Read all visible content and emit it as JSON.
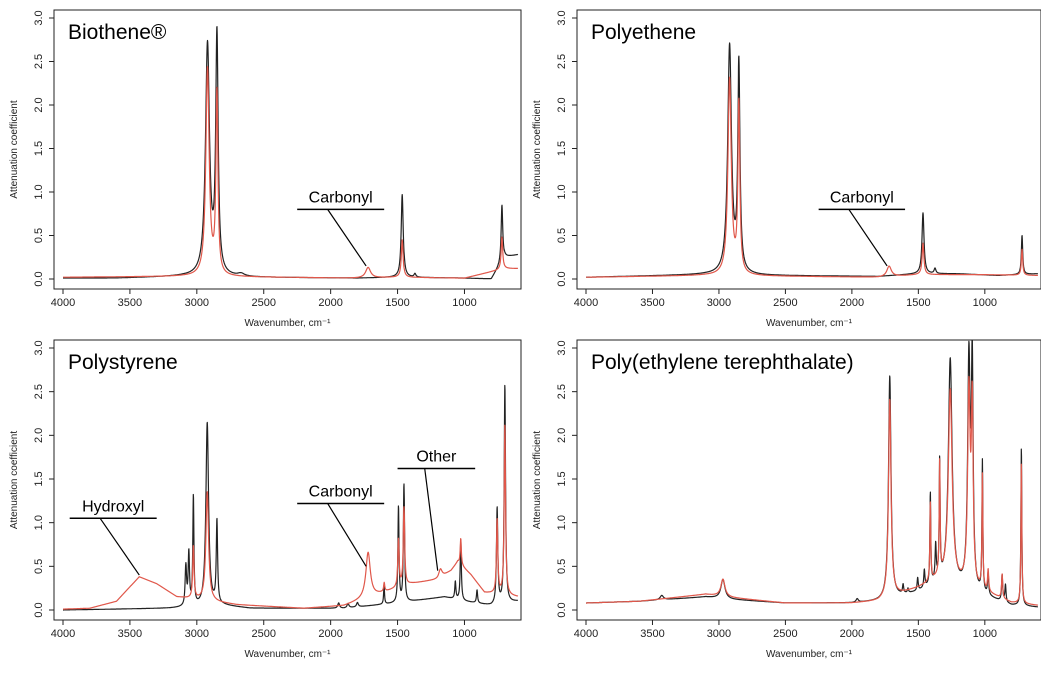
{
  "chart_data": [
    {
      "type": "line",
      "title": "Biothene®",
      "xlabel": "Wavenumber, cm⁻¹",
      "ylabel": "Attenuation coefficient",
      "xlim": [
        4000,
        600
      ],
      "ylim": [
        0,
        3.0
      ],
      "xticks": [
        {
          "value": 4000,
          "label": "4000"
        },
        {
          "value": 3500,
          "label": "3500"
        },
        {
          "value": 3000,
          "label": "3000"
        },
        {
          "value": 2500,
          "label": "2500"
        },
        {
          "value": 2000,
          "label": "2000"
        },
        {
          "value": 1500,
          "label": "1500"
        },
        {
          "value": 1000,
          "label": "1000"
        }
      ],
      "yticks": [
        {
          "value": 0,
          "label": "0.0"
        },
        {
          "value": 0.5,
          "label": "0.5"
        },
        {
          "value": 1.0,
          "label": "1.0"
        },
        {
          "value": 1.5,
          "label": "1.5"
        },
        {
          "value": 2.0,
          "label": "2.0"
        },
        {
          "value": 2.5,
          "label": "2.5"
        },
        {
          "value": 3.0,
          "label": "3.0"
        }
      ],
      "series": [
        {
          "color": "#222222",
          "baseline": [
            [
              4000,
              0.01
            ],
            [
              3600,
              0.01
            ],
            [
              3100,
              0.03
            ],
            [
              2700,
              0.02
            ],
            [
              1800,
              0.01
            ],
            [
              1500,
              0.02
            ],
            [
              1000,
              0.01
            ],
            [
              800,
              0.0
            ],
            [
              700,
              0.25
            ],
            [
              600,
              0.28
            ]
          ],
          "peaks": [
            [
              2920,
              2.65,
              18
            ],
            [
              2850,
              2.72,
              11
            ],
            [
              2670,
              0.03,
              30
            ],
            [
              1465,
              0.95,
              9
            ],
            [
              1370,
              0.04,
              8
            ],
            [
              720,
              0.65,
              7
            ]
          ]
        },
        {
          "color": "#e0574a",
          "baseline": [
            [
              4000,
              0.02
            ],
            [
              3100,
              0.03
            ],
            [
              1800,
              0.01
            ],
            [
              1500,
              0.02
            ],
            [
              1000,
              0.01
            ],
            [
              700,
              0.12
            ],
            [
              600,
              0.12
            ]
          ],
          "peaks": [
            [
              2920,
              2.38,
              15
            ],
            [
              2850,
              2.08,
              9
            ],
            [
              1720,
              0.12,
              22
            ],
            [
              1465,
              0.43,
              8
            ],
            [
              720,
              0.37,
              7
            ]
          ]
        }
      ],
      "annotations": [
        {
          "label": "Carbonyl",
          "bar": [
            2250,
            1600,
            0.8
          ],
          "tip": [
            1735,
            0.15
          ]
        }
      ]
    },
    {
      "type": "line",
      "title": "Polyethene",
      "xlabel": "Wavenumber, cm⁻¹",
      "ylabel": "Attenuation coefficient",
      "xlim": [
        4000,
        600
      ],
      "ylim": [
        0,
        3.0
      ],
      "xticks": [
        {
          "value": 4000,
          "label": "4000"
        },
        {
          "value": 3500,
          "label": "3500"
        },
        {
          "value": 3000,
          "label": "3000"
        },
        {
          "value": 2500,
          "label": "2500"
        },
        {
          "value": 2000,
          "label": "2000"
        },
        {
          "value": 1500,
          "label": "1500"
        },
        {
          "value": 1000,
          "label": "1000"
        }
      ],
      "yticks": [
        {
          "value": 0,
          "label": "0.0"
        },
        {
          "value": 0.5,
          "label": "0.5"
        },
        {
          "value": 1.0,
          "label": "1.0"
        },
        {
          "value": 1.5,
          "label": "1.5"
        },
        {
          "value": 2.0,
          "label": "2.0"
        },
        {
          "value": 2.5,
          "label": "2.5"
        },
        {
          "value": 3.0,
          "label": "3.0"
        }
      ],
      "series": [
        {
          "color": "#222222",
          "baseline": [
            [
              4000,
              0.02
            ],
            [
              3100,
              0.05
            ],
            [
              2700,
              0.04
            ],
            [
              1800,
              0.03
            ],
            [
              1500,
              0.06
            ],
            [
              1200,
              0.06
            ],
            [
              900,
              0.04
            ],
            [
              600,
              0.06
            ]
          ],
          "peaks": [
            [
              2920,
              2.62,
              17
            ],
            [
              2850,
              2.38,
              10
            ],
            [
              1465,
              0.7,
              9
            ],
            [
              1375,
              0.06,
              8
            ],
            [
              720,
              0.45,
              6
            ]
          ]
        },
        {
          "color": "#e0574a",
          "baseline": [
            [
              4000,
              0.02
            ],
            [
              3100,
              0.04
            ],
            [
              1800,
              0.02
            ],
            [
              1500,
              0.05
            ],
            [
              1000,
              0.05
            ],
            [
              600,
              0.04
            ]
          ],
          "peaks": [
            [
              2920,
              2.25,
              15
            ],
            [
              2850,
              1.95,
              9
            ],
            [
              1720,
              0.12,
              20
            ],
            [
              1465,
              0.36,
              8
            ],
            [
              720,
              0.3,
              6
            ]
          ]
        }
      ],
      "annotations": [
        {
          "label": "Carbonyl",
          "bar": [
            2250,
            1600,
            0.8
          ],
          "tip": [
            1735,
            0.15
          ]
        }
      ]
    },
    {
      "type": "line",
      "title": "Polystyrene",
      "xlabel": "Wavenumber, cm⁻¹",
      "ylabel": "Attenuation coefficient",
      "xlim": [
        4000,
        600
      ],
      "ylim": [
        0,
        3.0
      ],
      "xticks": [
        {
          "value": 4000,
          "label": "4000"
        },
        {
          "value": 3500,
          "label": "3500"
        },
        {
          "value": 3000,
          "label": "3000"
        },
        {
          "value": 2500,
          "label": "2500"
        },
        {
          "value": 2000,
          "label": "2000"
        },
        {
          "value": 1500,
          "label": "1500"
        },
        {
          "value": 1000,
          "label": "1000"
        }
      ],
      "yticks": [
        {
          "value": 0,
          "label": "0.0"
        },
        {
          "value": 0.5,
          "label": "0.5"
        },
        {
          "value": 1.0,
          "label": "1.0"
        },
        {
          "value": 1.5,
          "label": "1.5"
        },
        {
          "value": 2.0,
          "label": "2.0"
        },
        {
          "value": 2.5,
          "label": "2.5"
        },
        {
          "value": 3.0,
          "label": "3.0"
        }
      ],
      "series": [
        {
          "color": "#222222",
          "baseline": [
            [
              4000,
              0.0
            ],
            [
              3200,
              0.02
            ],
            [
              2800,
              0.05
            ],
            [
              2600,
              0.02
            ],
            [
              1900,
              0.02
            ],
            [
              1500,
              0.08
            ],
            [
              1300,
              0.12
            ],
            [
              1150,
              0.15
            ],
            [
              1000,
              0.1
            ],
            [
              800,
              0.05
            ],
            [
              600,
              0.1
            ]
          ],
          "peaks": [
            [
              3082,
              0.45,
              6
            ],
            [
              3060,
              0.6,
              6
            ],
            [
              3026,
              1.25,
              5
            ],
            [
              2922,
              2.1,
              12
            ],
            [
              2850,
              0.95,
              6
            ],
            [
              1940,
              0.06,
              8
            ],
            [
              1870,
              0.05,
              8
            ],
            [
              1800,
              0.05,
              8
            ],
            [
              1601,
              0.22,
              4
            ],
            [
              1493,
              1.1,
              5
            ],
            [
              1452,
              1.35,
              5
            ],
            [
              1068,
              0.2,
              5
            ],
            [
              1028,
              0.7,
              5
            ],
            [
              906,
              0.15,
              5
            ],
            [
              756,
              1.1,
              6
            ],
            [
              698,
              2.5,
              6
            ]
          ]
        },
        {
          "color": "#e0574a",
          "baseline": [
            [
              4000,
              0.01
            ],
            [
              3800,
              0.02
            ],
            [
              3600,
              0.1
            ],
            [
              3430,
              0.38
            ],
            [
              3300,
              0.3
            ],
            [
              3150,
              0.15
            ],
            [
              2700,
              0.06
            ],
            [
              2200,
              0.02
            ],
            [
              1900,
              0.05
            ],
            [
              1600,
              0.2
            ],
            [
              1400,
              0.3
            ],
            [
              1200,
              0.35
            ],
            [
              1100,
              0.45
            ],
            [
              1050,
              0.55
            ],
            [
              950,
              0.4
            ],
            [
              850,
              0.2
            ],
            [
              600,
              0.15
            ]
          ],
          "peaks": [
            [
              3026,
              0.6,
              6
            ],
            [
              2922,
              1.25,
              12
            ],
            [
              1720,
              0.52,
              20
            ],
            [
              1600,
              0.1,
              5
            ],
            [
              1493,
              0.55,
              6
            ],
            [
              1452,
              0.9,
              6
            ],
            [
              1180,
              0.1,
              15
            ],
            [
              1028,
              0.3,
              5
            ],
            [
              756,
              0.85,
              6
            ],
            [
              698,
              1.95,
              6
            ]
          ]
        }
      ],
      "annotations": [
        {
          "label": "Hydroxyl",
          "bar": [
            3950,
            3300,
            1.05
          ],
          "tip": [
            3430,
            0.4
          ]
        },
        {
          "label": "Carbonyl",
          "bar": [
            2250,
            1600,
            1.22
          ],
          "tip": [
            1735,
            0.5
          ]
        },
        {
          "label": "Other",
          "bar": [
            1500,
            920,
            1.62
          ],
          "tip": [
            1200,
            0.45
          ]
        }
      ]
    },
    {
      "type": "line",
      "title": "Poly(ethylene terephthalate)",
      "xlabel": "Wavenumber, cm⁻¹",
      "ylabel": "Attenuation coefficient",
      "xlim": [
        4000,
        600
      ],
      "ylim": [
        0,
        3.0
      ],
      "xticks": [
        {
          "value": 4000,
          "label": "4000"
        },
        {
          "value": 3500,
          "label": "3500"
        },
        {
          "value": 3000,
          "label": "3000"
        },
        {
          "value": 2500,
          "label": "2500"
        },
        {
          "value": 2000,
          "label": "2000"
        },
        {
          "value": 1500,
          "label": "1500"
        },
        {
          "value": 1000,
          "label": "1000"
        }
      ],
      "yticks": [
        {
          "value": 0,
          "label": "0.0"
        },
        {
          "value": 0.5,
          "label": "0.5"
        },
        {
          "value": 1.0,
          "label": "1.0"
        },
        {
          "value": 1.5,
          "label": "1.5"
        },
        {
          "value": 2.0,
          "label": "2.0"
        },
        {
          "value": 2.5,
          "label": "2.5"
        },
        {
          "value": 3.0,
          "label": "3.0"
        }
      ],
      "series": [
        {
          "color": "#222222",
          "baseline": [
            [
              4000,
              0.08
            ],
            [
              3600,
              0.1
            ],
            [
              3100,
              0.15
            ],
            [
              2900,
              0.12
            ],
            [
              2500,
              0.08
            ],
            [
              2000,
              0.08
            ],
            [
              1800,
              0.1
            ],
            [
              1500,
              0.2
            ],
            [
              1350,
              0.3
            ],
            [
              1000,
              0.15
            ],
            [
              800,
              0.05
            ],
            [
              600,
              0.03
            ]
          ],
          "peaks": [
            [
              3430,
              0.05,
              15
            ],
            [
              2970,
              0.22,
              18
            ],
            [
              1960,
              0.04,
              10
            ],
            [
              1715,
              2.55,
              11
            ],
            [
              1615,
              0.1,
              5
            ],
            [
              1578,
              0.05,
              5
            ],
            [
              1505,
              0.15,
              5
            ],
            [
              1455,
              0.2,
              5
            ],
            [
              1410,
              1.05,
              4
            ],
            [
              1370,
              0.4,
              5
            ],
            [
              1340,
              1.35,
              4
            ],
            [
              1260,
              2.6,
              17
            ],
            [
              1120,
              2.6,
              11
            ],
            [
              1095,
              2.5,
              8
            ],
            [
              1018,
              1.5,
              4
            ],
            [
              975,
              0.25,
              5
            ],
            [
              870,
              0.3,
              5
            ],
            [
              845,
              0.2,
              5
            ],
            [
              725,
              1.82,
              4
            ]
          ]
        },
        {
          "color": "#e0574a",
          "baseline": [
            [
              4000,
              0.08
            ],
            [
              3600,
              0.1
            ],
            [
              3100,
              0.18
            ],
            [
              2900,
              0.14
            ],
            [
              2500,
              0.08
            ],
            [
              2000,
              0.08
            ],
            [
              1800,
              0.1
            ],
            [
              1500,
              0.25
            ],
            [
              1350,
              0.35
            ],
            [
              1000,
              0.2
            ],
            [
              800,
              0.08
            ],
            [
              600,
              0.05
            ]
          ],
          "peaks": [
            [
              2970,
              0.2,
              18
            ],
            [
              1715,
              2.27,
              11
            ],
            [
              1410,
              0.9,
              4
            ],
            [
              1340,
              1.3,
              4
            ],
            [
              1260,
              2.2,
              17
            ],
            [
              1120,
              2.2,
              11
            ],
            [
              1095,
              2.0,
              8
            ],
            [
              1018,
              1.3,
              4
            ],
            [
              975,
              0.25,
              5
            ],
            [
              870,
              0.28,
              5
            ],
            [
              725,
              1.62,
              4
            ]
          ]
        }
      ],
      "annotations": []
    }
  ]
}
